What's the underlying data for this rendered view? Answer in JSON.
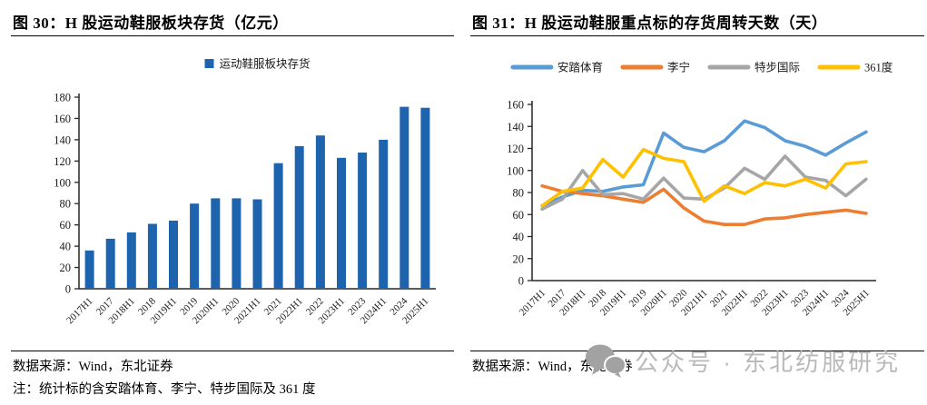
{
  "figures": [
    {
      "id": "fig30",
      "title": "图 30：H 股运动鞋服板块存货（亿元）",
      "source": "数据来源：Wind，东北证券",
      "note": "注：统计标的含安踏体育、李宁、特步国际及 361 度"
    },
    {
      "id": "fig31",
      "title": "图 31：H 股运动鞋服重点标的存货周转天数（天）",
      "source": "数据来源：Wind，东北证券",
      "watermark": "公众号 · 东北纺服研究"
    }
  ],
  "chart_data": [
    {
      "type": "bar",
      "title": "图 30：H 股运动鞋服板块存货（亿元）",
      "categories": [
        "2017H1",
        "2017",
        "2018H1",
        "2018",
        "2019H1",
        "2019",
        "2020H1",
        "2020",
        "2021H1",
        "2021",
        "2022H1",
        "2022",
        "2023H1",
        "2023",
        "2024H1",
        "2024",
        "2025H1"
      ],
      "series": [
        {
          "name": "运动鞋服板块存货",
          "color": "#1E63AE",
          "values": [
            36,
            47,
            53,
            61,
            64,
            80,
            85,
            85,
            84,
            118,
            134,
            144,
            123,
            128,
            140,
            171,
            170
          ]
        }
      ],
      "xlabel": "",
      "ylabel": "",
      "ylim": [
        0,
        180
      ],
      "ytick_step": 20,
      "grid": false,
      "legend_position": "top"
    },
    {
      "type": "line",
      "title": "图 31：H 股运动鞋服重点标的存货周转天数（天）",
      "categories": [
        "2017H1",
        "2017",
        "2018H1",
        "2018",
        "2019H1",
        "2019",
        "2020H1",
        "2020",
        "2021H1",
        "2021",
        "2022H1",
        "2022",
        "2023H1",
        "2023",
        "2024H1",
        "2024",
        "2025H1"
      ],
      "series": [
        {
          "name": "安踏体育",
          "color": "#5B9BD5",
          "values": [
            68,
            76,
            82,
            81,
            85,
            87,
            134,
            121,
            117,
            127,
            145,
            139,
            127,
            122,
            114,
            125,
            135
          ]
        },
        {
          "name": "李宁",
          "color": "#ED7D31",
          "values": [
            86,
            81,
            79,
            77,
            74,
            71,
            83,
            66,
            54,
            51,
            51,
            56,
            57,
            60,
            62,
            64,
            61
          ]
        },
        {
          "name": "特步国际",
          "color": "#A6A6A6",
          "values": [
            65,
            74,
            100,
            78,
            79,
            74,
            93,
            75,
            74,
            84,
            102,
            92,
            113,
            94,
            91,
            77,
            92
          ]
        },
        {
          "name": "361度",
          "color": "#FFC000",
          "values": [
            68,
            81,
            84,
            110,
            94,
            119,
            111,
            108,
            72,
            86,
            79,
            89,
            86,
            92,
            84,
            106,
            108
          ]
        }
      ],
      "xlabel": "",
      "ylabel": "",
      "ylim": [
        0,
        160
      ],
      "ytick_step": 20,
      "grid": false,
      "legend_position": "top"
    }
  ]
}
